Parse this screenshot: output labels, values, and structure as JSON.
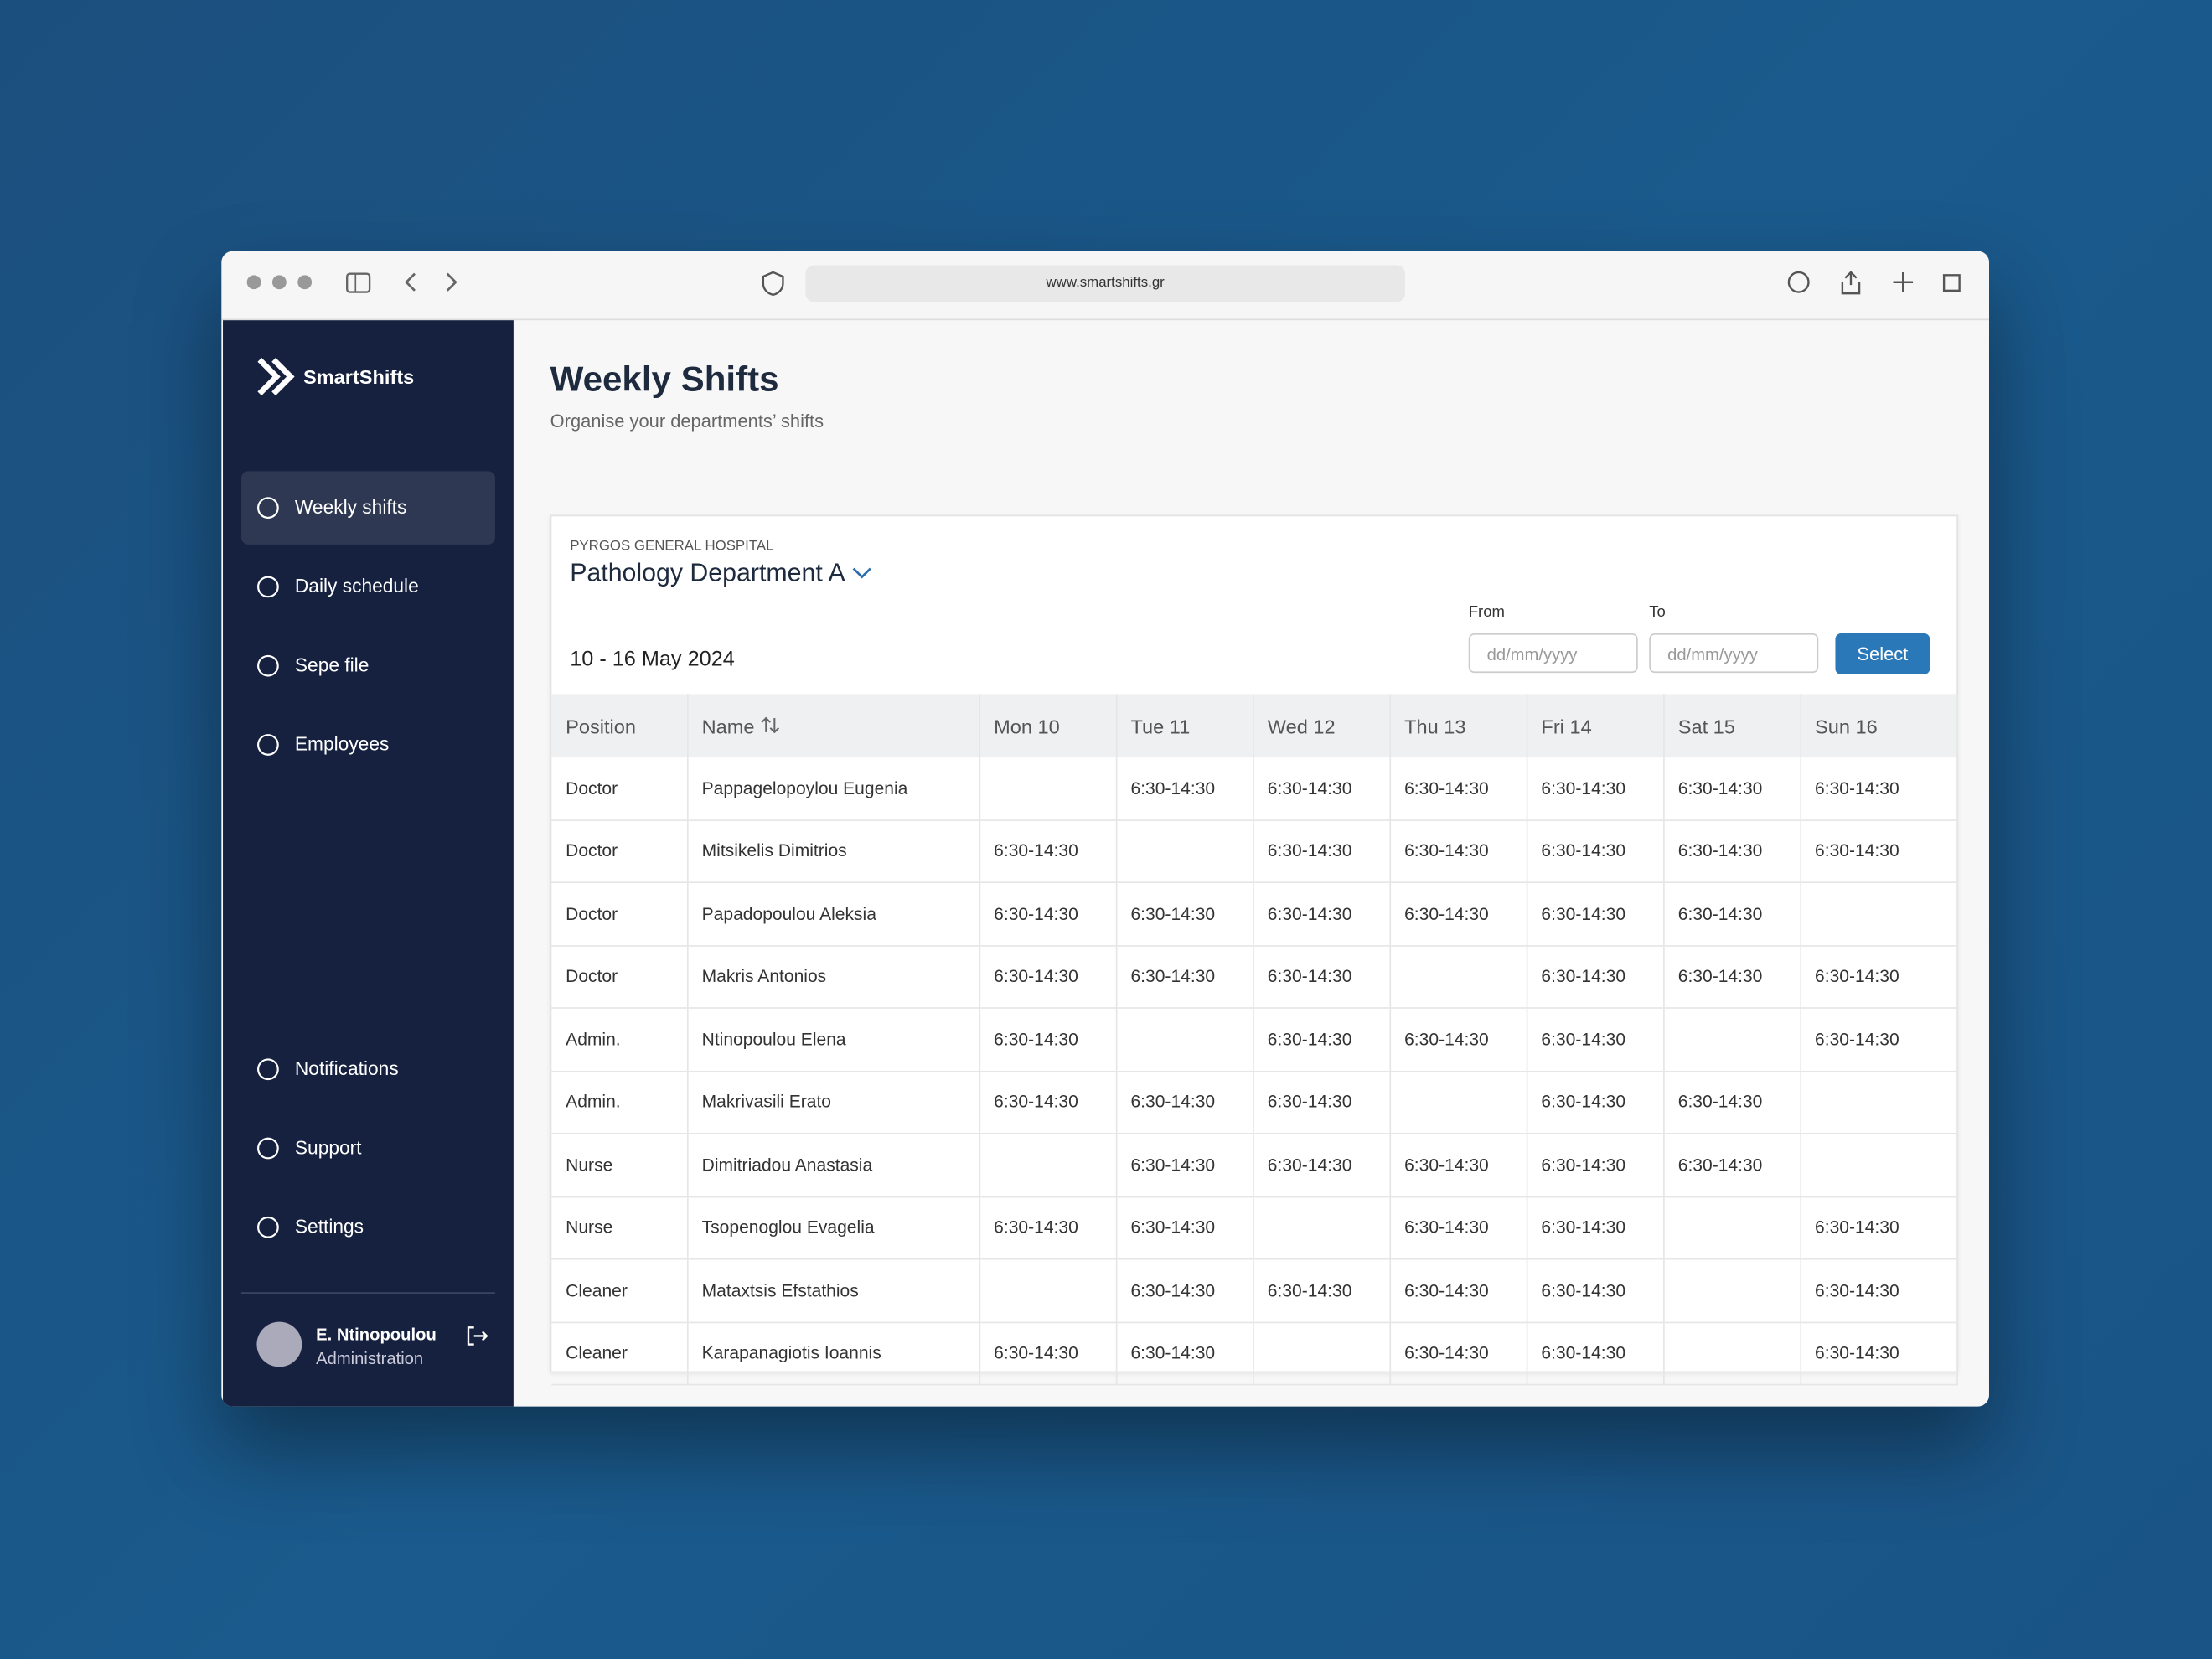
{
  "browser": {
    "url": "www.smartshifts.gr"
  },
  "sidebar": {
    "brand": "SmartShifts",
    "nav": [
      "Weekly shifts",
      "Daily schedule",
      "Sepe file",
      "Employees"
    ],
    "bottom_nav": [
      "Notifications",
      "Support",
      "Settings"
    ],
    "user": {
      "name": "E. Ntinopoulou",
      "role": "Administration"
    }
  },
  "header": {
    "title": "Weekly Shifts",
    "subtitle": "Organise your departments’ shifts"
  },
  "card": {
    "hospital": "PYRGOS GENERAL HOSPITAL",
    "department": "Pathology Department A",
    "date_range": "10 - 16 May 2024",
    "from_label": "From",
    "to_label": "To",
    "from_placeholder": "dd/mm/yyyy",
    "to_placeholder": "dd/mm/yyyy",
    "button": "Select"
  },
  "table": {
    "headers": [
      "Position",
      "Name",
      "Mon 10",
      "Tue 11",
      "Wed 12",
      "Thu 13",
      "Fri 14",
      "Sat 15",
      "Sun 16"
    ],
    "rows": [
      [
        "Doctor",
        "Pappagelopoylou Eugenia",
        null,
        "6:30-14:30",
        "6:30-14:30",
        "6:30-14:30",
        "6:30-14:30",
        "6:30-14:30",
        "6:30-14:30"
      ],
      [
        "Doctor",
        "Mitsikelis Dimitrios",
        "6:30-14:30",
        null,
        "6:30-14:30",
        "6:30-14:30",
        "6:30-14:30",
        "6:30-14:30",
        "6:30-14:30"
      ],
      [
        "Doctor",
        "Papadopoulou Aleksia",
        "6:30-14:30",
        "6:30-14:30",
        "6:30-14:30",
        "6:30-14:30",
        "6:30-14:30",
        "6:30-14:30",
        null
      ],
      [
        "Doctor",
        "Makris Antonios",
        "6:30-14:30",
        "6:30-14:30",
        "6:30-14:30",
        null,
        "6:30-14:30",
        "6:30-14:30",
        "6:30-14:30"
      ],
      [
        "Admin.",
        "Ntinopoulou Elena",
        "6:30-14:30",
        null,
        "6:30-14:30",
        "6:30-14:30",
        "6:30-14:30",
        null,
        "6:30-14:30"
      ],
      [
        "Admin.",
        "Makrivasili Erato",
        "6:30-14:30",
        "6:30-14:30",
        "6:30-14:30",
        null,
        "6:30-14:30",
        "6:30-14:30",
        null
      ],
      [
        "Nurse",
        "Dimitriadou Anastasia",
        null,
        "6:30-14:30",
        "6:30-14:30",
        "6:30-14:30",
        "6:30-14:30",
        "6:30-14:30",
        null
      ],
      [
        "Nurse",
        "Tsopenoglou Evagelia",
        "6:30-14:30",
        "6:30-14:30",
        null,
        "6:30-14:30",
        "6:30-14:30",
        null,
        "6:30-14:30"
      ],
      [
        "Cleaner",
        "Mataxtsis Efstathios",
        null,
        "6:30-14:30",
        "6:30-14:30",
        "6:30-14:30",
        "6:30-14:30",
        null,
        "6:30-14:30"
      ],
      [
        "Cleaner",
        "Karapanagiotis Ioannis",
        "6:30-14:30",
        "6:30-14:30",
        null,
        "6:30-14:30",
        "6:30-14:30",
        null,
        "6:30-14:30"
      ]
    ]
  }
}
